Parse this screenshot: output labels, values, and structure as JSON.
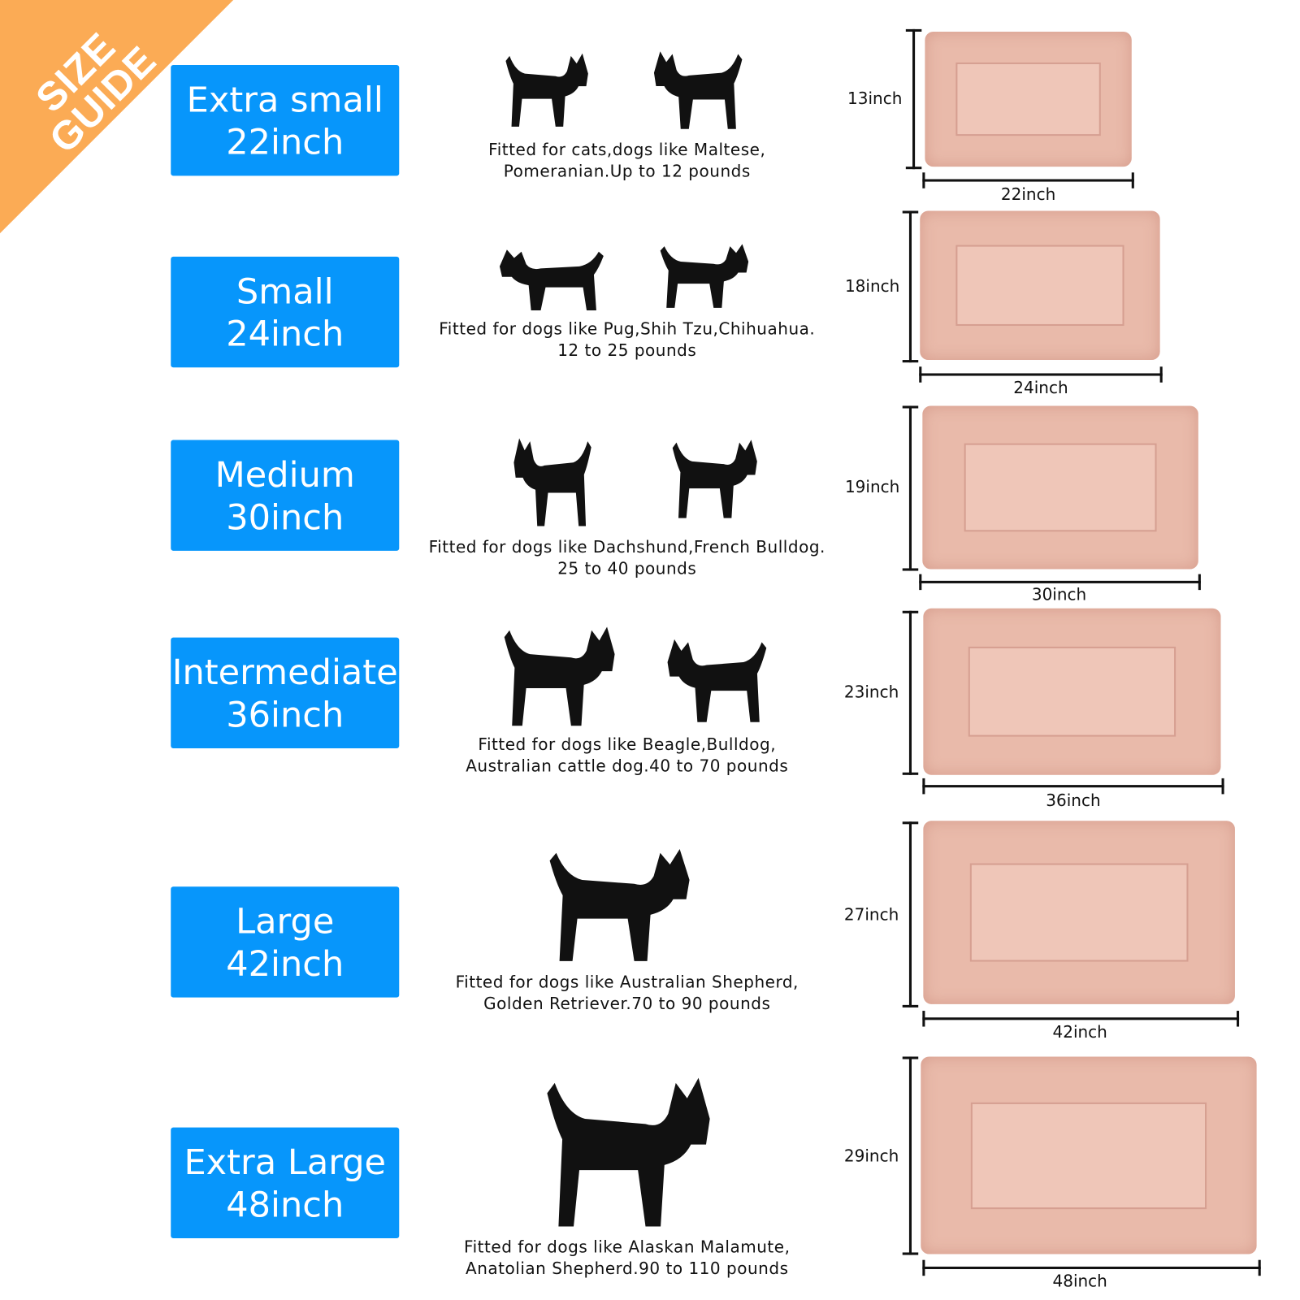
{
  "badge": {
    "line1": "SIZE",
    "line2": "GUIDE",
    "color": "#fbab55"
  },
  "accent_color": "#0796fb",
  "mat_color": "#e9baaa",
  "sizes": [
    {
      "name": "Extra small",
      "length": "22inch",
      "caption1": "Fitted for cats,dogs like Maltese,",
      "caption2": "Pomeranian.Up to 12 pounds",
      "height_label": "13inch",
      "width_label": "22inch"
    },
    {
      "name": "Small",
      "length": "24inch",
      "caption1": "Fitted for dogs like Pug,Shih Tzu,Chihuahua.",
      "caption2": "12 to 25 pounds",
      "height_label": "18inch",
      "width_label": "24inch"
    },
    {
      "name": "Medium",
      "length": "30inch",
      "caption1": "Fitted for dogs like Dachshund,French Bulldog.",
      "caption2": "25 to 40 pounds",
      "height_label": "19inch",
      "width_label": "30inch"
    },
    {
      "name": "Intermediate",
      "length": "36inch",
      "caption1": "Fitted for dogs like Beagle,Bulldog,",
      "caption2": "Australian cattle dog.40 to 70 pounds",
      "height_label": "23inch",
      "width_label": "36inch"
    },
    {
      "name": "Large",
      "length": "42inch",
      "caption1": "Fitted for dogs like Australian Shepherd,",
      "caption2": "Golden Retriever.70 to 90 pounds",
      "height_label": "27inch",
      "width_label": "42inch"
    },
    {
      "name": "Extra Large",
      "length": "48inch",
      "caption1": "Fitted for dogs like Alaskan Malamute,",
      "caption2": "Anatolian Shepherd.90 to 110 pounds",
      "height_label": "29inch",
      "width_label": "48inch"
    }
  ]
}
